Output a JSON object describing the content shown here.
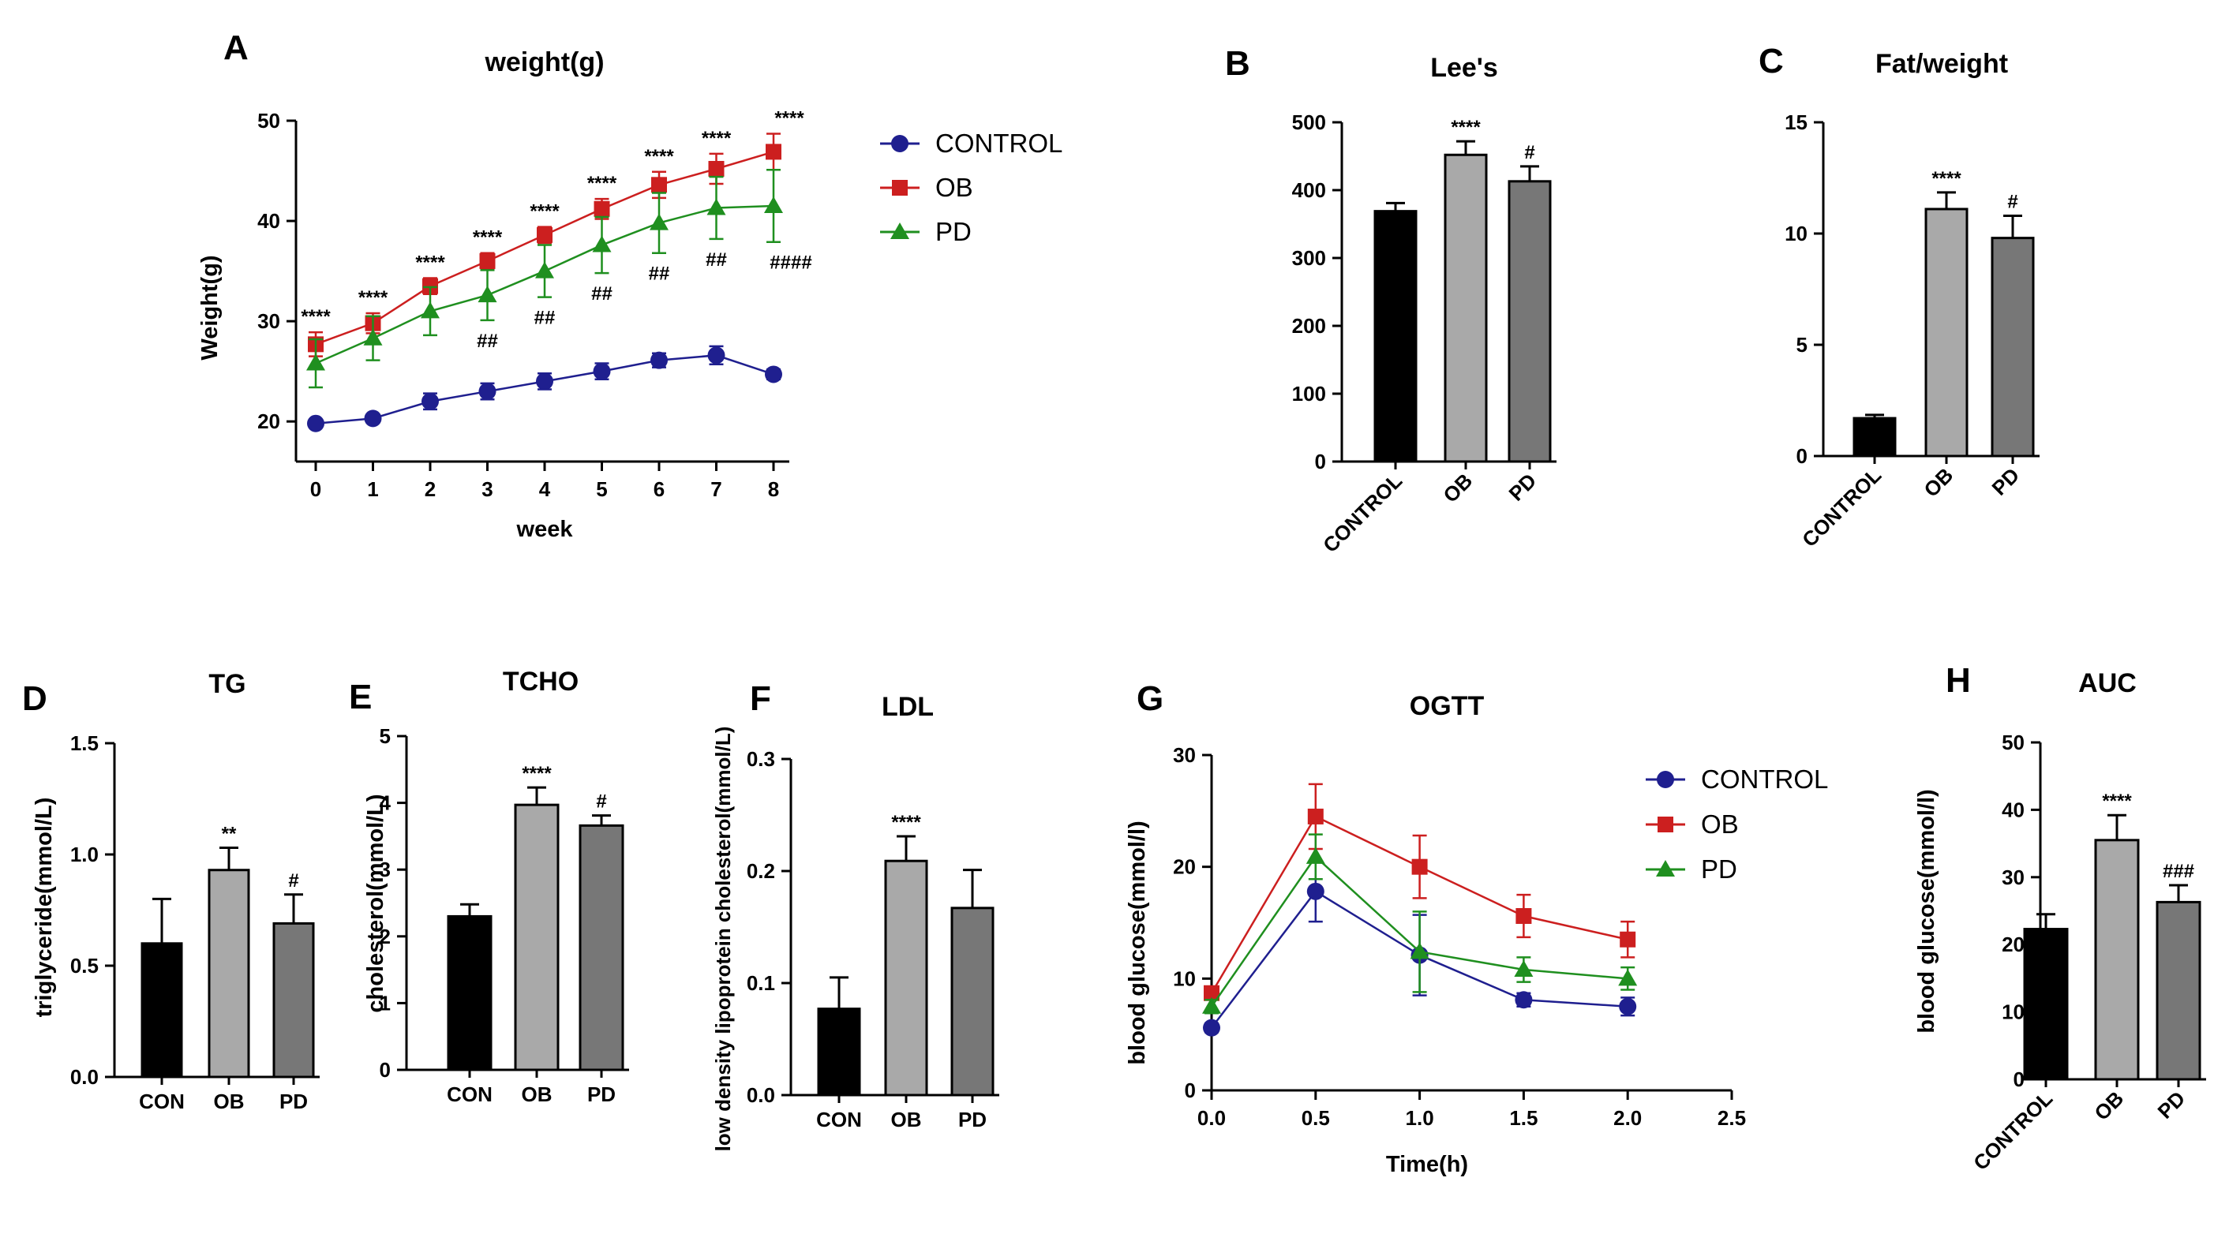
{
  "chart_data": [
    {
      "panel": "A",
      "type": "line",
      "title": "weight(g)",
      "xlabel": "week",
      "ylabel": "Weight(g)",
      "x": [
        0,
        1,
        2,
        3,
        4,
        5,
        6,
        7,
        8
      ],
      "xticks": [
        "0",
        "1",
        "2",
        "3",
        "4",
        "5",
        "6",
        "7",
        "8"
      ],
      "ylim": [
        16,
        50
      ],
      "yticks": [
        "20",
        "30",
        "40",
        "50"
      ],
      "legend": [
        "CONTROL",
        "OB",
        "PD"
      ],
      "series": [
        {
          "name": "CONTROL",
          "color": "#1f1f8f",
          "marker": "circle",
          "values": [
            19.8,
            20.3,
            22,
            23,
            24,
            25,
            26.1,
            26.6,
            24.7
          ],
          "err": [
            0.4,
            0.4,
            0.8,
            0.8,
            0.8,
            0.8,
            0.7,
            0.9,
            0.5
          ]
        },
        {
          "name": "OB",
          "color": "#cc1f1f",
          "marker": "square",
          "values": [
            27.7,
            29.8,
            33.5,
            36,
            38.6,
            41.2,
            43.6,
            45.2,
            46.9
          ],
          "err": [
            1.2,
            1.0,
            0.8,
            0.8,
            0.8,
            1.0,
            1.3,
            1.5,
            1.8
          ]
        },
        {
          "name": "PD",
          "color": "#1f8f1f",
          "marker": "triangle",
          "values": [
            25.8,
            28.3,
            31,
            32.6,
            35,
            37.6,
            39.8,
            41.3,
            41.5
          ],
          "err": [
            2.4,
            2.2,
            2.4,
            2.5,
            2.6,
            2.8,
            3.0,
            3.1,
            3.6
          ]
        }
      ],
      "sig_ob": [
        "****",
        "****",
        "****",
        "****",
        "****",
        "****",
        "****",
        "****",
        "****"
      ],
      "sig_pd": [
        "",
        "",
        "",
        "##",
        "##",
        "##",
        "##",
        "##",
        "####"
      ]
    },
    {
      "panel": "B",
      "type": "bar",
      "title": "Lee's",
      "categories": [
        "CONTROL",
        "OB",
        "PD"
      ],
      "values": [
        369,
        452,
        413
      ],
      "err": [
        12,
        20,
        22
      ],
      "ylim": [
        0,
        500
      ],
      "yticks": [
        "0",
        "100",
        "200",
        "300",
        "400",
        "500"
      ],
      "sig": [
        "",
        "****",
        "#"
      ],
      "colors": [
        "#000000",
        "#a9a9a9",
        "#777777"
      ],
      "rotated": true
    },
    {
      "panel": "C",
      "type": "bar",
      "title": "Fat/weight",
      "categories": [
        "CONTROL",
        "OB",
        "PD"
      ],
      "values": [
        1.7,
        11.1,
        9.8
      ],
      "err": [
        0.15,
        0.75,
        1.0
      ],
      "ylim": [
        0,
        15
      ],
      "yticks": [
        "0",
        "5",
        "10",
        "15"
      ],
      "sig": [
        "",
        "****",
        "#"
      ],
      "colors": [
        "#000000",
        "#a9a9a9",
        "#777777"
      ],
      "rotated": true
    },
    {
      "panel": "D",
      "type": "bar",
      "title": "TG",
      "ylabel": "triglyceride(mmol/L)",
      "categories": [
        "CON",
        "OB",
        "PD"
      ],
      "values": [
        0.6,
        0.93,
        0.69
      ],
      "err": [
        0.2,
        0.1,
        0.13
      ],
      "ylim": [
        0,
        1.5
      ],
      "yticks": [
        "0.0",
        "0.5",
        "1.0",
        "1.5"
      ],
      "sig": [
        "",
        "**",
        "#"
      ],
      "colors": [
        "#000000",
        "#a9a9a9",
        "#777777"
      ],
      "rotated": false
    },
    {
      "panel": "E",
      "type": "bar",
      "title": "TCHO",
      "ylabel": "cholesterol(mmol/L)",
      "categories": [
        "CON",
        "OB",
        "PD"
      ],
      "values": [
        2.3,
        3.97,
        3.66
      ],
      "err": [
        0.18,
        0.26,
        0.15
      ],
      "ylim": [
        0,
        5
      ],
      "yticks": [
        "0",
        "1",
        "2",
        "3",
        "4",
        "5"
      ],
      "sig": [
        "",
        "****",
        "#"
      ],
      "colors": [
        "#000000",
        "#a9a9a9",
        "#777777"
      ],
      "rotated": false
    },
    {
      "panel": "F",
      "type": "bar",
      "title": "LDL",
      "ylabel": "low density lipoprotein cholesterol(mmol/L)",
      "categories": [
        "CON",
        "OB",
        "PD"
      ],
      "values": [
        0.077,
        0.209,
        0.167
      ],
      "err": [
        0.028,
        0.022,
        0.034
      ],
      "ylim": [
        0,
        0.3
      ],
      "yticks": [
        "0.0",
        "0.1",
        "0.2",
        "0.3"
      ],
      "sig": [
        "",
        "****",
        ""
      ],
      "colors": [
        "#000000",
        "#a9a9a9",
        "#777777"
      ],
      "rotated": false
    },
    {
      "panel": "G",
      "type": "line",
      "title": "OGTT",
      "xlabel": "Time(h)",
      "ylabel": "blood glucose(mmol/l)",
      "x": [
        0,
        0.5,
        1,
        1.5,
        2
      ],
      "xlim": [
        0,
        2.5
      ],
      "xticks": [
        "0.0",
        "0.5",
        "1.0",
        "1.5",
        "2.0",
        "2.5"
      ],
      "ylim": [
        0,
        30
      ],
      "yticks": [
        "0",
        "10",
        "20",
        "30"
      ],
      "legend": [
        "CONTROL",
        "OB",
        "PD"
      ],
      "series": [
        {
          "name": "CONTROL",
          "color": "#1f1f8f",
          "marker": "circle",
          "values": [
            5.6,
            17.8,
            12.1,
            8.1,
            7.5
          ],
          "err": [
            0.4,
            2.7,
            3.6,
            0.6,
            0.8
          ]
        },
        {
          "name": "OB",
          "color": "#cc1f1f",
          "marker": "square",
          "values": [
            8.7,
            24.5,
            20,
            15.6,
            13.5
          ],
          "err": [
            0.6,
            2.9,
            2.8,
            1.9,
            1.6
          ]
        },
        {
          "name": "PD",
          "color": "#1f8f1f",
          "marker": "triangle",
          "values": [
            7.5,
            20.9,
            12.4,
            10.8,
            10
          ],
          "err": [
            0.6,
            2.0,
            3.6,
            1.1,
            1.0
          ]
        }
      ]
    },
    {
      "panel": "H",
      "type": "bar",
      "title": "AUC",
      "ylabel": "blood glucose(mmol/l)",
      "categories": [
        "CONTROL",
        "OB",
        "PD"
      ],
      "values": [
        22.3,
        35.5,
        26.3
      ],
      "err": [
        2.2,
        3.7,
        2.5
      ],
      "ylim": [
        0,
        50
      ],
      "yticks": [
        "0",
        "10",
        "20",
        "30",
        "40",
        "50"
      ],
      "sig": [
        "",
        "****",
        "###"
      ],
      "colors": [
        "#000000",
        "#a9a9a9",
        "#777777"
      ],
      "rotated": true
    }
  ]
}
